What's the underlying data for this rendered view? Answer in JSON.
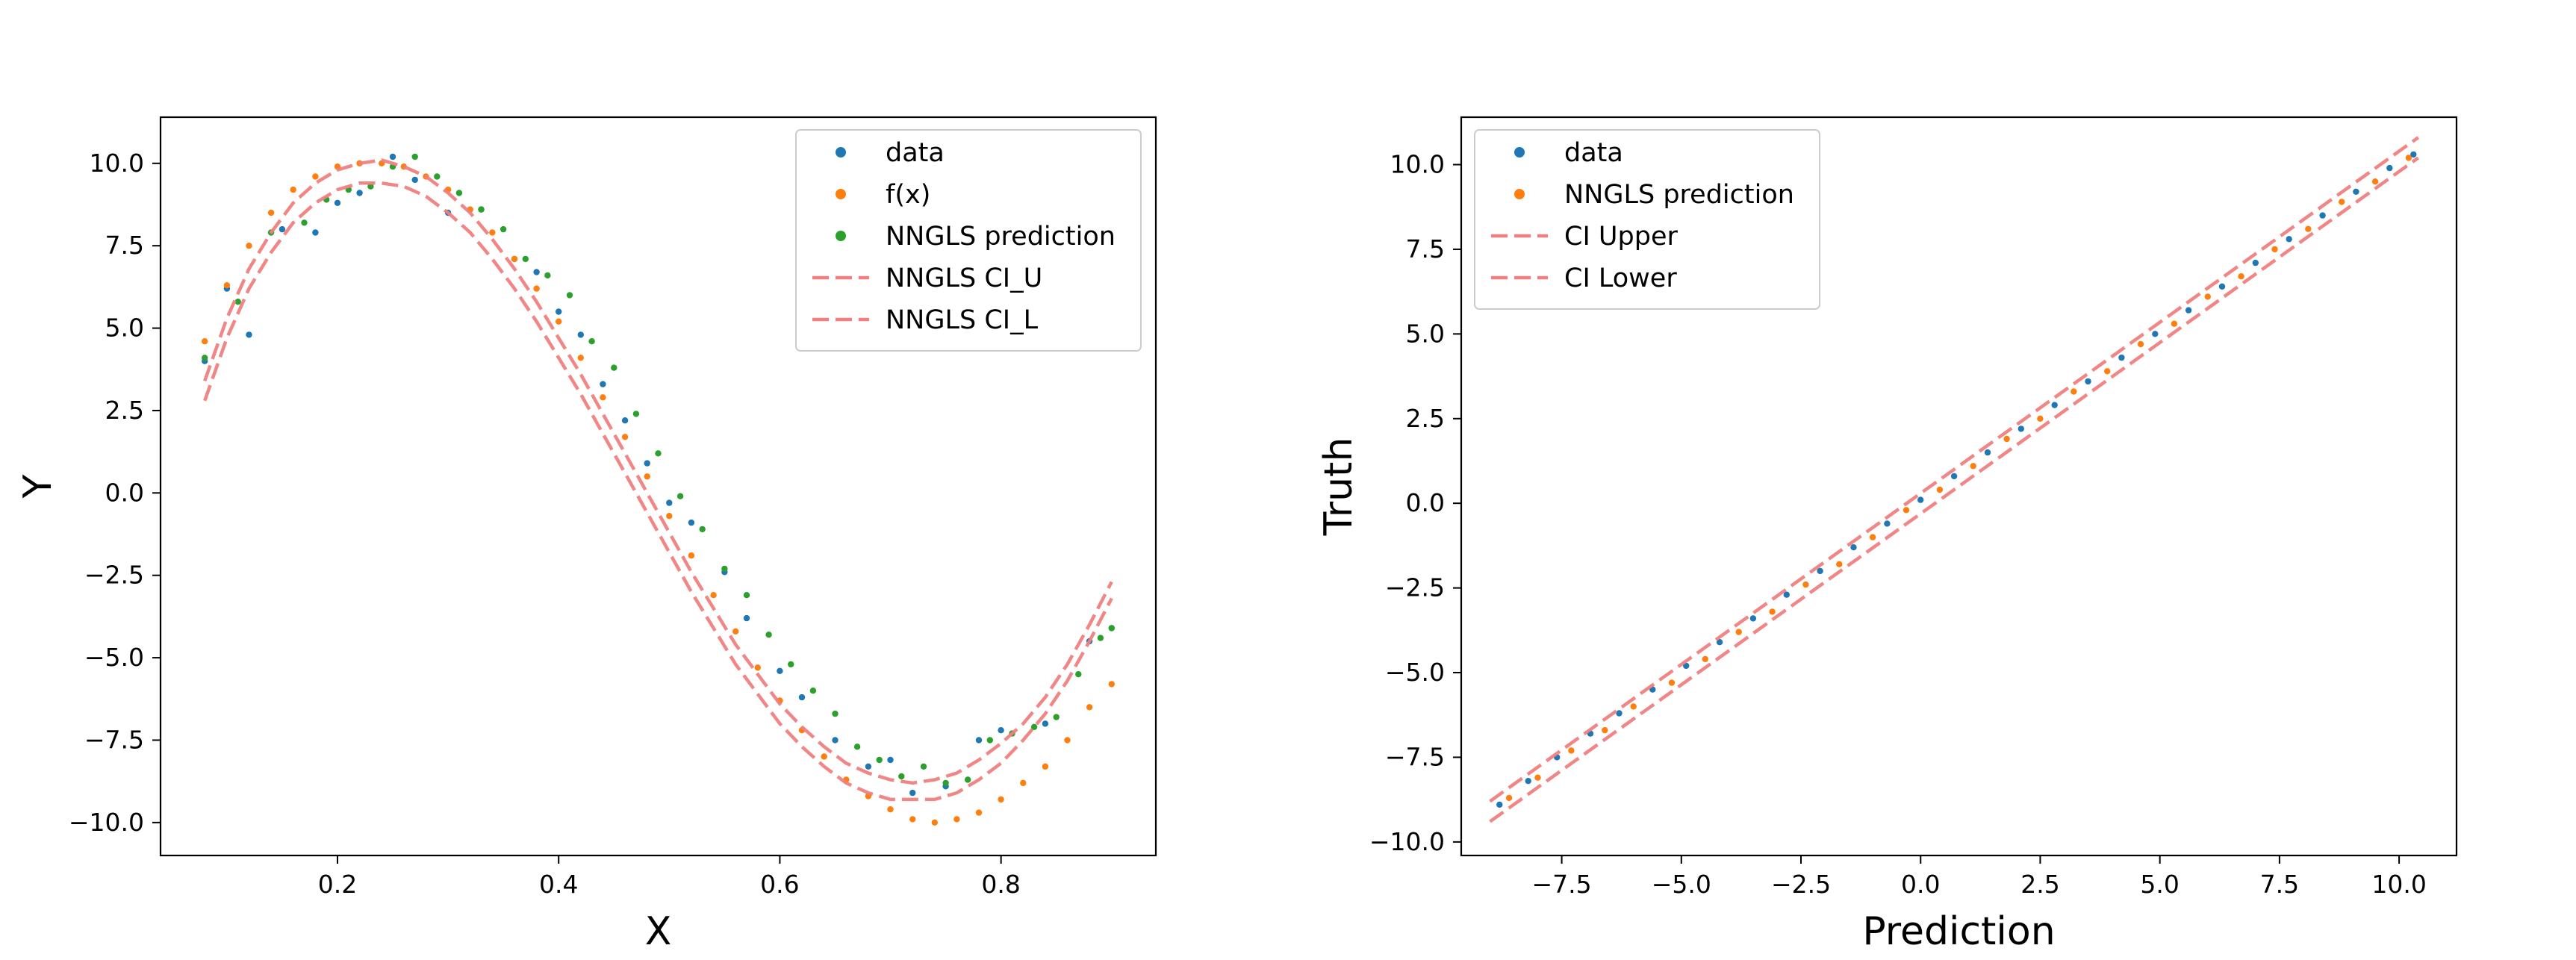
{
  "chart_data": [
    {
      "type": "scatter",
      "title": "",
      "xlabel": "X",
      "ylabel": "Y",
      "xlim": [
        0.04,
        0.94
      ],
      "ylim": [
        -11.0,
        11.4
      ],
      "xticks": [
        0.2,
        0.4,
        0.6,
        0.8
      ],
      "xtick_labels": [
        "0.2",
        "0.4",
        "0.6",
        "0.8"
      ],
      "yticks": [
        10.0,
        7.5,
        5.0,
        2.5,
        0.0,
        -2.5,
        -5.0,
        -7.5,
        -10.0
      ],
      "ytick_labels": [
        "10.0",
        "7.5",
        "5.0",
        "2.5",
        "0.0",
        "−2.5",
        "−5.0",
        "−7.5",
        "−10.0"
      ],
      "grid": false,
      "legend_position": "upper right",
      "legend": [
        {
          "label": "data",
          "kind": "dot",
          "color": "#1f77b4"
        },
        {
          "label": "f(x)",
          "kind": "dot",
          "color": "#ff7f0e"
        },
        {
          "label": "NNGLS prediction",
          "kind": "dot",
          "color": "#2ca02c"
        },
        {
          "label": "NNGLS CI_U",
          "kind": "dash",
          "color": "#f08080"
        },
        {
          "label": "NNGLS CI_L",
          "kind": "dash",
          "color": "#f08080"
        }
      ],
      "series": [
        {
          "name": "data",
          "kind": "scatter",
          "color": "#1f77b4",
          "x": [
            0.08,
            0.1,
            0.12,
            0.15,
            0.18,
            0.2,
            0.22,
            0.25,
            0.27,
            0.3,
            0.33,
            0.36,
            0.38,
            0.4,
            0.42,
            0.44,
            0.46,
            0.48,
            0.5,
            0.52,
            0.55,
            0.57,
            0.6,
            0.62,
            0.65,
            0.68,
            0.7,
            0.72,
            0.75,
            0.78,
            0.8,
            0.84,
            0.88,
            0.9
          ],
          "y": [
            4.0,
            6.2,
            4.8,
            8.0,
            7.9,
            8.8,
            9.1,
            10.2,
            9.5,
            8.5,
            8.6,
            7.1,
            6.7,
            5.5,
            4.8,
            3.3,
            2.2,
            0.9,
            -0.3,
            -0.9,
            -2.4,
            -3.8,
            -5.4,
            -6.2,
            -7.5,
            -8.3,
            -8.1,
            -9.1,
            -8.9,
            -7.5,
            -7.2,
            -7.0,
            -4.5,
            -4.1
          ]
        },
        {
          "name": "f(x)",
          "kind": "scatter",
          "color": "#ff7f0e",
          "x": [
            0.08,
            0.1,
            0.12,
            0.14,
            0.16,
            0.18,
            0.2,
            0.22,
            0.24,
            0.26,
            0.28,
            0.3,
            0.32,
            0.34,
            0.36,
            0.38,
            0.4,
            0.42,
            0.44,
            0.46,
            0.48,
            0.5,
            0.52,
            0.54,
            0.56,
            0.58,
            0.6,
            0.62,
            0.64,
            0.66,
            0.68,
            0.7,
            0.72,
            0.74,
            0.76,
            0.78,
            0.8,
            0.82,
            0.84,
            0.86,
            0.88,
            0.9
          ],
          "y": [
            4.6,
            6.3,
            7.5,
            8.5,
            9.2,
            9.6,
            9.9,
            10.0,
            10.0,
            9.9,
            9.6,
            9.2,
            8.6,
            7.9,
            7.1,
            6.2,
            5.2,
            4.1,
            2.9,
            1.7,
            0.5,
            -0.7,
            -1.9,
            -3.1,
            -4.2,
            -5.3,
            -6.3,
            -7.2,
            -8.0,
            -8.7,
            -9.2,
            -9.6,
            -9.9,
            -10.0,
            -9.9,
            -9.7,
            -9.3,
            -8.8,
            -8.3,
            -7.5,
            -6.5,
            -5.8
          ]
        },
        {
          "name": "NNGLS prediction",
          "kind": "scatter",
          "color": "#2ca02c",
          "x": [
            0.08,
            0.11,
            0.14,
            0.17,
            0.19,
            0.21,
            0.23,
            0.25,
            0.27,
            0.29,
            0.31,
            0.33,
            0.35,
            0.37,
            0.39,
            0.41,
            0.43,
            0.45,
            0.47,
            0.49,
            0.51,
            0.53,
            0.55,
            0.57,
            0.59,
            0.61,
            0.63,
            0.65,
            0.67,
            0.69,
            0.71,
            0.73,
            0.75,
            0.77,
            0.79,
            0.81,
            0.83,
            0.85,
            0.87,
            0.89,
            0.9
          ],
          "y": [
            4.1,
            5.8,
            7.9,
            8.2,
            8.9,
            9.2,
            9.3,
            9.9,
            10.2,
            9.6,
            9.1,
            8.6,
            8.0,
            7.1,
            6.6,
            6.0,
            4.6,
            3.8,
            2.4,
            1.2,
            -0.1,
            -1.1,
            -2.3,
            -3.1,
            -4.3,
            -5.2,
            -6.0,
            -6.7,
            -7.7,
            -8.1,
            -8.6,
            -8.3,
            -8.8,
            -8.7,
            -7.5,
            -7.3,
            -7.1,
            -6.8,
            -5.5,
            -4.4,
            -4.1
          ]
        },
        {
          "name": "NNGLS CI_U",
          "kind": "dashed-line",
          "color": "#f08080",
          "x": [
            0.08,
            0.1,
            0.12,
            0.14,
            0.16,
            0.18,
            0.2,
            0.22,
            0.24,
            0.26,
            0.28,
            0.3,
            0.32,
            0.34,
            0.36,
            0.38,
            0.4,
            0.42,
            0.44,
            0.46,
            0.48,
            0.5,
            0.52,
            0.54,
            0.56,
            0.58,
            0.6,
            0.62,
            0.64,
            0.66,
            0.68,
            0.7,
            0.72,
            0.74,
            0.76,
            0.78,
            0.8,
            0.82,
            0.84,
            0.86,
            0.88,
            0.9
          ],
          "y": [
            3.4,
            5.3,
            6.8,
            7.9,
            8.8,
            9.4,
            9.8,
            10.0,
            10.1,
            9.9,
            9.6,
            9.1,
            8.5,
            7.7,
            6.8,
            5.8,
            4.7,
            3.6,
            2.4,
            1.2,
            0.0,
            -1.2,
            -2.4,
            -3.5,
            -4.6,
            -5.5,
            -6.4,
            -7.1,
            -7.7,
            -8.2,
            -8.5,
            -8.7,
            -8.8,
            -8.7,
            -8.5,
            -8.1,
            -7.6,
            -7.0,
            -6.2,
            -5.2,
            -4.0,
            -2.7
          ]
        },
        {
          "name": "NNGLS CI_L",
          "kind": "dashed-line",
          "color": "#f08080",
          "x": [
            0.08,
            0.1,
            0.12,
            0.14,
            0.16,
            0.18,
            0.2,
            0.22,
            0.24,
            0.26,
            0.28,
            0.3,
            0.32,
            0.34,
            0.36,
            0.38,
            0.4,
            0.42,
            0.44,
            0.46,
            0.48,
            0.5,
            0.52,
            0.54,
            0.56,
            0.58,
            0.6,
            0.62,
            0.64,
            0.66,
            0.68,
            0.7,
            0.72,
            0.74,
            0.76,
            0.78,
            0.8,
            0.82,
            0.84,
            0.86,
            0.88,
            0.9
          ],
          "y": [
            2.8,
            4.7,
            6.2,
            7.3,
            8.2,
            8.8,
            9.2,
            9.4,
            9.4,
            9.3,
            9.0,
            8.5,
            7.9,
            7.1,
            6.2,
            5.2,
            4.1,
            3.0,
            1.8,
            0.6,
            -0.6,
            -1.8,
            -3.0,
            -4.1,
            -5.2,
            -6.1,
            -7.0,
            -7.7,
            -8.3,
            -8.8,
            -9.1,
            -9.3,
            -9.3,
            -9.3,
            -9.1,
            -8.7,
            -8.2,
            -7.5,
            -6.7,
            -5.7,
            -4.5,
            -3.2
          ]
        }
      ]
    },
    {
      "type": "scatter",
      "title": "",
      "xlabel": "Prediction",
      "ylabel": "Truth",
      "xlim": [
        -9.6,
        11.2
      ],
      "ylim": [
        -10.4,
        11.4
      ],
      "xticks": [
        -7.5,
        -5.0,
        -2.5,
        0.0,
        2.5,
        5.0,
        7.5,
        10.0
      ],
      "xtick_labels": [
        "−7.5",
        "−5.0",
        "−2.5",
        "0.0",
        "2.5",
        "5.0",
        "7.5",
        "10.0"
      ],
      "yticks": [
        10.0,
        7.5,
        5.0,
        2.5,
        0.0,
        -2.5,
        -5.0,
        -7.5,
        -10.0
      ],
      "ytick_labels": [
        "10.0",
        "7.5",
        "5.0",
        "2.5",
        "0.0",
        "−2.5",
        "−5.0",
        "−7.5",
        "−10.0"
      ],
      "grid": false,
      "legend_position": "upper left",
      "legend": [
        {
          "label": "data",
          "kind": "dot",
          "color": "#1f77b4"
        },
        {
          "label": "NNGLS prediction",
          "kind": "dot",
          "color": "#ff7f0e"
        },
        {
          "label": "CI Upper",
          "kind": "dash",
          "color": "#f08080"
        },
        {
          "label": "CI Lower",
          "kind": "dash",
          "color": "#f08080"
        }
      ],
      "series": [
        {
          "name": "data",
          "kind": "scatter",
          "color": "#1f77b4",
          "x": [
            -8.8,
            -8.2,
            -7.6,
            -6.9,
            -6.3,
            -5.6,
            -4.9,
            -4.2,
            -3.5,
            -2.8,
            -2.1,
            -1.4,
            -0.7,
            0.0,
            0.7,
            1.4,
            2.1,
            2.8,
            3.5,
            4.2,
            4.9,
            5.6,
            6.3,
            7.0,
            7.7,
            8.4,
            9.1,
            9.8,
            10.3
          ],
          "y": [
            -8.9,
            -8.2,
            -7.5,
            -6.8,
            -6.2,
            -5.5,
            -4.8,
            -4.1,
            -3.4,
            -2.7,
            -2.0,
            -1.3,
            -0.6,
            0.1,
            0.8,
            1.5,
            2.2,
            2.9,
            3.6,
            4.3,
            5.0,
            5.7,
            6.4,
            7.1,
            7.8,
            8.5,
            9.2,
            9.9,
            10.3
          ]
        },
        {
          "name": "NNGLS prediction",
          "kind": "scatter",
          "color": "#ff7f0e",
          "x": [
            -8.6,
            -8.0,
            -7.3,
            -6.6,
            -6.0,
            -5.2,
            -4.5,
            -3.8,
            -3.1,
            -2.4,
            -1.7,
            -1.0,
            -0.3,
            0.4,
            1.1,
            1.8,
            2.5,
            3.2,
            3.9,
            4.6,
            5.3,
            6.0,
            6.7,
            7.4,
            8.1,
            8.8,
            9.5,
            10.2
          ],
          "y": [
            -8.7,
            -8.1,
            -7.3,
            -6.7,
            -6.0,
            -5.3,
            -4.6,
            -3.8,
            -3.2,
            -2.4,
            -1.8,
            -1.0,
            -0.2,
            0.4,
            1.1,
            1.9,
            2.5,
            3.3,
            3.9,
            4.7,
            5.3,
            6.1,
            6.7,
            7.5,
            8.1,
            8.9,
            9.5,
            10.2
          ]
        },
        {
          "name": "CI Upper",
          "kind": "dashed-line",
          "color": "#f08080",
          "x": [
            -9.0,
            10.4
          ],
          "y": [
            -8.8,
            10.8
          ]
        },
        {
          "name": "CI Lower",
          "kind": "dashed-line",
          "color": "#f08080",
          "x": [
            -9.0,
            10.4
          ],
          "y": [
            -9.4,
            10.2
          ]
        }
      ]
    }
  ]
}
